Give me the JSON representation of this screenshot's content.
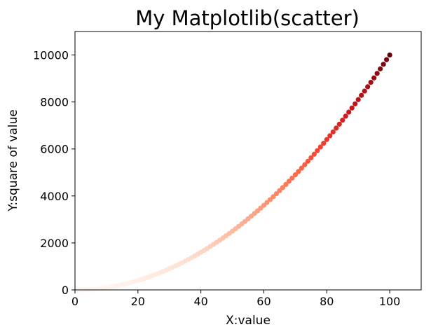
{
  "chart_data": {
    "type": "scatter",
    "title": "My Matplotlib(scatter)",
    "xlabel": "X:value",
    "ylabel": "Y:square of value",
    "xlim": [
      0,
      110
    ],
    "ylim": [
      0,
      11000
    ],
    "xticks": [
      "0",
      "20",
      "40",
      "60",
      "80",
      "100"
    ],
    "yticks": [
      "0",
      "2000",
      "4000",
      "6000",
      "8000",
      "10000"
    ],
    "colormap": "Reds",
    "grid": false,
    "x": [
      1,
      2,
      3,
      4,
      5,
      6,
      7,
      8,
      9,
      10,
      11,
      12,
      13,
      14,
      15,
      16,
      17,
      18,
      19,
      20,
      21,
      22,
      23,
      24,
      25,
      26,
      27,
      28,
      29,
      30,
      31,
      32,
      33,
      34,
      35,
      36,
      37,
      38,
      39,
      40,
      41,
      42,
      43,
      44,
      45,
      46,
      47,
      48,
      49,
      50,
      51,
      52,
      53,
      54,
      55,
      56,
      57,
      58,
      59,
      60,
      61,
      62,
      63,
      64,
      65,
      66,
      67,
      68,
      69,
      70,
      71,
      72,
      73,
      74,
      75,
      76,
      77,
      78,
      79,
      80,
      81,
      82,
      83,
      84,
      85,
      86,
      87,
      88,
      89,
      90,
      91,
      92,
      93,
      94,
      95,
      96,
      97,
      98,
      99,
      100
    ],
    "y": [
      1,
      4,
      9,
      16,
      25,
      36,
      49,
      64,
      81,
      100,
      121,
      144,
      169,
      196,
      225,
      256,
      289,
      324,
      361,
      400,
      441,
      484,
      529,
      576,
      625,
      676,
      729,
      784,
      841,
      900,
      961,
      1024,
      1089,
      1156,
      1225,
      1296,
      1369,
      1444,
      1521,
      1600,
      1681,
      1764,
      1849,
      1936,
      2025,
      2116,
      2209,
      2304,
      2401,
      2500,
      2601,
      2704,
      2809,
      2916,
      3025,
      3136,
      3249,
      3364,
      3481,
      3600,
      3721,
      3844,
      3969,
      4096,
      4225,
      4356,
      4489,
      4624,
      4761,
      4900,
      5041,
      5184,
      5329,
      5476,
      5625,
      5776,
      5929,
      6084,
      6241,
      6400,
      6561,
      6724,
      6889,
      7056,
      7225,
      7396,
      7569,
      7744,
      7921,
      8100,
      8281,
      8464,
      8649,
      8836,
      9025,
      9216,
      9409,
      9604,
      9801,
      10000
    ]
  }
}
